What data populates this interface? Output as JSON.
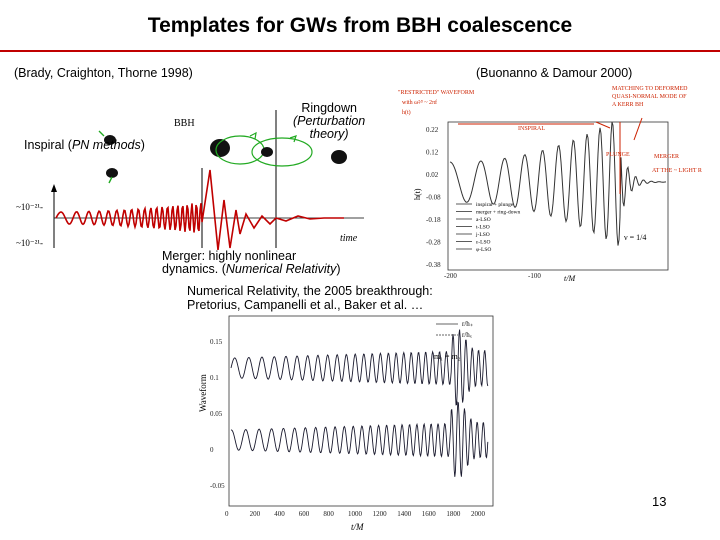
{
  "slide": {
    "title": "Templates for GWs from BBH coalescence",
    "left_citation": "(Brady, Craighton, Thorne 1998)",
    "right_citation": "(Buonanno & Damour 2000)",
    "ringdown": {
      "line1": "Ringdown",
      "line2": "(Perturbation",
      "line3": "theory)"
    },
    "inspiral": {
      "prefix": "Inspiral (",
      "emph": "PN methods",
      "suffix": ")"
    },
    "merger": {
      "line1": "Merger: highly nonlinear",
      "line2_prefix": "dynamics. (",
      "line2_emph": "Numerical Relativity",
      "line2_suffix": ")"
    },
    "nr_heading": {
      "line1": "Numerical Relativity, the 2005 breakthrough:",
      "line2": "Pretorius, Campanelli et al., Baker et al. …"
    },
    "slide_number": "13"
  },
  "left_figure": {
    "bbh_label": "BBH",
    "ytick_top": "~10⁻²¹-",
    "ytick_bottom": "~10⁻²¹-",
    "time_label": "time"
  },
  "right_figure": {
    "ylabel": "h(t)",
    "xlabel": "t/M",
    "yticks": [
      "0.22",
      "0.12",
      "0.02",
      "-0.08",
      "-0.18",
      "-0.28",
      "-0.38"
    ],
    "xticks": [
      "-200",
      "-100"
    ],
    "legend": [
      "inspiral + plunge",
      "merger + ring-down",
      "a-LSO",
      "t-LSO",
      "j-LSO",
      "ε-LSO",
      "φ-LSO"
    ],
    "nu_label": "ν = 1/4",
    "red_notes": {
      "top_left": "\"RESTRICTED\" WAVEFORM",
      "top_left2": "with ω²⁄³ ~ 2πf",
      "top_left3": "h(t)",
      "plunge": "PLUNGE",
      "insp": "INSPIRAL",
      "match1": "MATCHING TO DEFORMED",
      "match2": "QUASI-NORMAL MODE OF",
      "match3": "A KERR BH",
      "merger": "MERGER",
      "light": "AT THE ~ LIGHT RING"
    }
  },
  "nr_figure": {
    "ylabel": "Waveform",
    "xlabel": "t/M",
    "yticks": [
      "0.15",
      "0.1",
      "0.05",
      "0",
      "-0.05"
    ],
    "xticks": [
      "0",
      "200",
      "400",
      "600",
      "800",
      "1000",
      "1200",
      "1400",
      "1600",
      "1800",
      "2000"
    ],
    "legend": [
      "r/h₊",
      "r/hₓ"
    ],
    "mass_label": "m₁ = m₂"
  },
  "colors": {
    "rule": "#c00000",
    "wave": "#c00000",
    "red_ink": "#cc2200",
    "wave_dark": "#1a1a2e"
  }
}
